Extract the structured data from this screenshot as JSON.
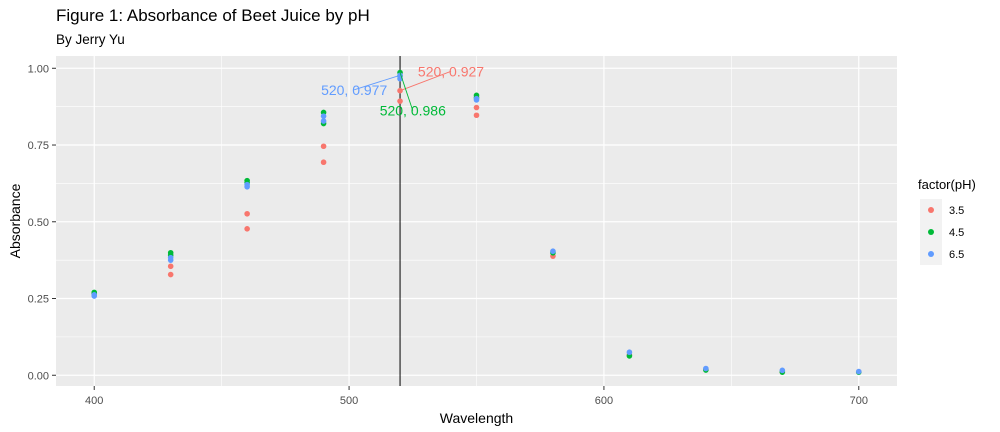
{
  "title": "Figure 1: Absorbance of Beet Juice by pH",
  "subtitle": "By Jerry Yu",
  "chart_data": {
    "type": "scatter",
    "xlabel": "Wavelength",
    "ylabel": "Absorbance",
    "xlim": [
      385,
      715
    ],
    "ylim": [
      -0.035,
      1.04
    ],
    "x_ticks": [
      400,
      500,
      600,
      700
    ],
    "x_tick_labels": [
      "400",
      "500",
      "600",
      "700"
    ],
    "y_ticks": [
      0,
      0.25,
      0.5,
      0.75,
      1.0
    ],
    "y_tick_labels": [
      "0.00",
      "0.25",
      "0.50",
      "0.75",
      "1.00"
    ],
    "grid": true,
    "background": "#ebebeb",
    "legend": {
      "title": "factor(pH)",
      "position": "right"
    },
    "series": [
      {
        "name": "3.5",
        "color": "#f8766d",
        "points": [
          [
            400,
            0.262
          ],
          [
            400,
            0.266
          ],
          [
            430,
            0.328
          ],
          [
            430,
            0.355
          ],
          [
            460,
            0.477
          ],
          [
            460,
            0.526
          ],
          [
            490,
            0.694
          ],
          [
            490,
            0.746
          ],
          [
            520,
            0.927
          ],
          [
            520,
            0.893
          ],
          [
            550,
            0.847
          ],
          [
            550,
            0.872
          ],
          [
            580,
            0.388
          ],
          [
            610,
            0.066
          ],
          [
            640,
            0.019
          ],
          [
            670,
            0.011
          ],
          [
            700,
            0.011
          ]
        ]
      },
      {
        "name": "4.5",
        "color": "#00ba38",
        "points": [
          [
            400,
            0.27
          ],
          [
            400,
            0.265
          ],
          [
            430,
            0.399
          ],
          [
            430,
            0.391
          ],
          [
            460,
            0.634
          ],
          [
            460,
            0.627
          ],
          [
            490,
            0.856
          ],
          [
            490,
            0.82
          ],
          [
            520,
            0.986
          ],
          [
            520,
            0.975
          ],
          [
            550,
            0.912
          ],
          [
            550,
            0.905
          ],
          [
            580,
            0.399
          ],
          [
            610,
            0.063
          ],
          [
            640,
            0.017
          ],
          [
            670,
            0.01
          ],
          [
            700,
            0.01
          ]
        ]
      },
      {
        "name": "6.5",
        "color": "#619cff",
        "points": [
          [
            400,
            0.258
          ],
          [
            400,
            0.262
          ],
          [
            430,
            0.375
          ],
          [
            430,
            0.383
          ],
          [
            460,
            0.614
          ],
          [
            460,
            0.621
          ],
          [
            490,
            0.828
          ],
          [
            490,
            0.844
          ],
          [
            520,
            0.977
          ],
          [
            520,
            0.966
          ],
          [
            550,
            0.897
          ],
          [
            550,
            0.901
          ],
          [
            580,
            0.404
          ],
          [
            610,
            0.075
          ],
          [
            640,
            0.022
          ],
          [
            670,
            0.016
          ],
          [
            700,
            0.012
          ]
        ]
      }
    ],
    "vline": {
      "x": 520,
      "color": "#000000"
    },
    "annotations": [
      {
        "text": "520, 0.927",
        "series": "3.5",
        "point": [
          520,
          0.927
        ],
        "label_at": [
          540,
          0.99
        ],
        "color": "#f8766d"
      },
      {
        "text": "520, 0.977",
        "series": "6.5",
        "point": [
          520,
          0.977
        ],
        "label_at": [
          502,
          0.93
        ],
        "color": "#619cff"
      },
      {
        "text": "520, 0.986",
        "series": "4.5",
        "point": [
          520,
          0.986
        ],
        "label_at": [
          525,
          0.862
        ],
        "color": "#00ba38"
      }
    ]
  }
}
